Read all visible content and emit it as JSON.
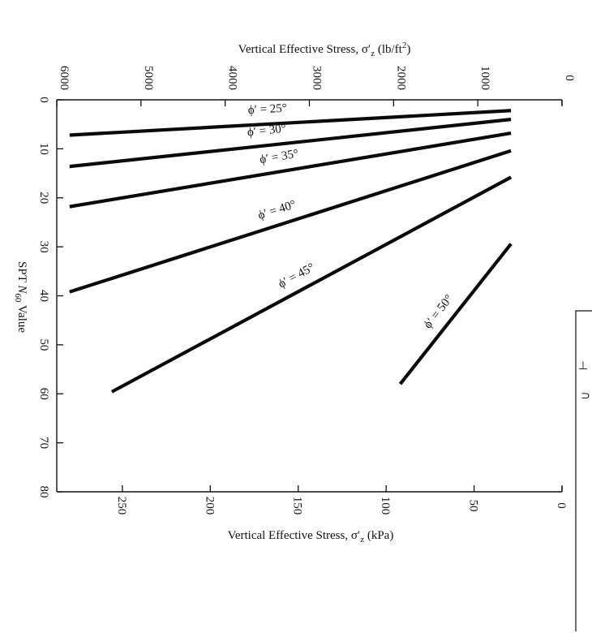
{
  "chart_data": {
    "type": "line",
    "title": "",
    "top_axis": {
      "label_prefix": "Vertical Effective Stress, σ′",
      "label_sub": "z",
      "label_unit": " (lb/ft",
      "label_sup": "2",
      "label_close": ")",
      "ticks": [
        "0",
        "1000",
        "2000",
        "3000",
        "4000",
        "5000",
        "6000"
      ],
      "range": [
        0,
        6000
      ]
    },
    "bottom_axis": {
      "label_prefix": "Vertical Effective Stress, σ′",
      "label_sub": "z",
      "label_unit": " (kPa)",
      "ticks": [
        "0",
        "50",
        "100",
        "150",
        "200",
        "250"
      ],
      "range": [
        0,
        287.3
      ]
    },
    "left_axis": {
      "label_prefix": "SPT ",
      "label_italic": "N",
      "label_sub": "60",
      "label_suffix": " Value",
      "ticks": [
        "0",
        "10",
        "20",
        "30",
        "40",
        "50",
        "60",
        "70",
        "80"
      ],
      "range": [
        0,
        80
      ],
      "inverted": true
    },
    "series": [
      {
        "name": "ϕ′ = 25°",
        "x_kpa": [
          29,
          280
        ],
        "y_n60": [
          2.2,
          7.2
        ]
      },
      {
        "name": "ϕ′ = 30°",
        "x_kpa": [
          29,
          280
        ],
        "y_n60": [
          4.0,
          13.6
        ]
      },
      {
        "name": "ϕ′ = 35°",
        "x_kpa": [
          29,
          280
        ],
        "y_n60": [
          6.8,
          21.8
        ]
      },
      {
        "name": "ϕ′ = 40°",
        "x_kpa": [
          29,
          280
        ],
        "y_n60": [
          10.4,
          39.2
        ]
      },
      {
        "name": "ϕ′ = 45°",
        "x_kpa": [
          29,
          256
        ],
        "y_n60": [
          15.8,
          59.6
        ]
      },
      {
        "name": "ϕ′ = 50°",
        "x_kpa": [
          29,
          92
        ],
        "y_n60": [
          29.4,
          58.0
        ]
      }
    ],
    "legend": "none",
    "grid": false
  },
  "margin_glyphs": [
    "⊥",
    "⊃"
  ]
}
